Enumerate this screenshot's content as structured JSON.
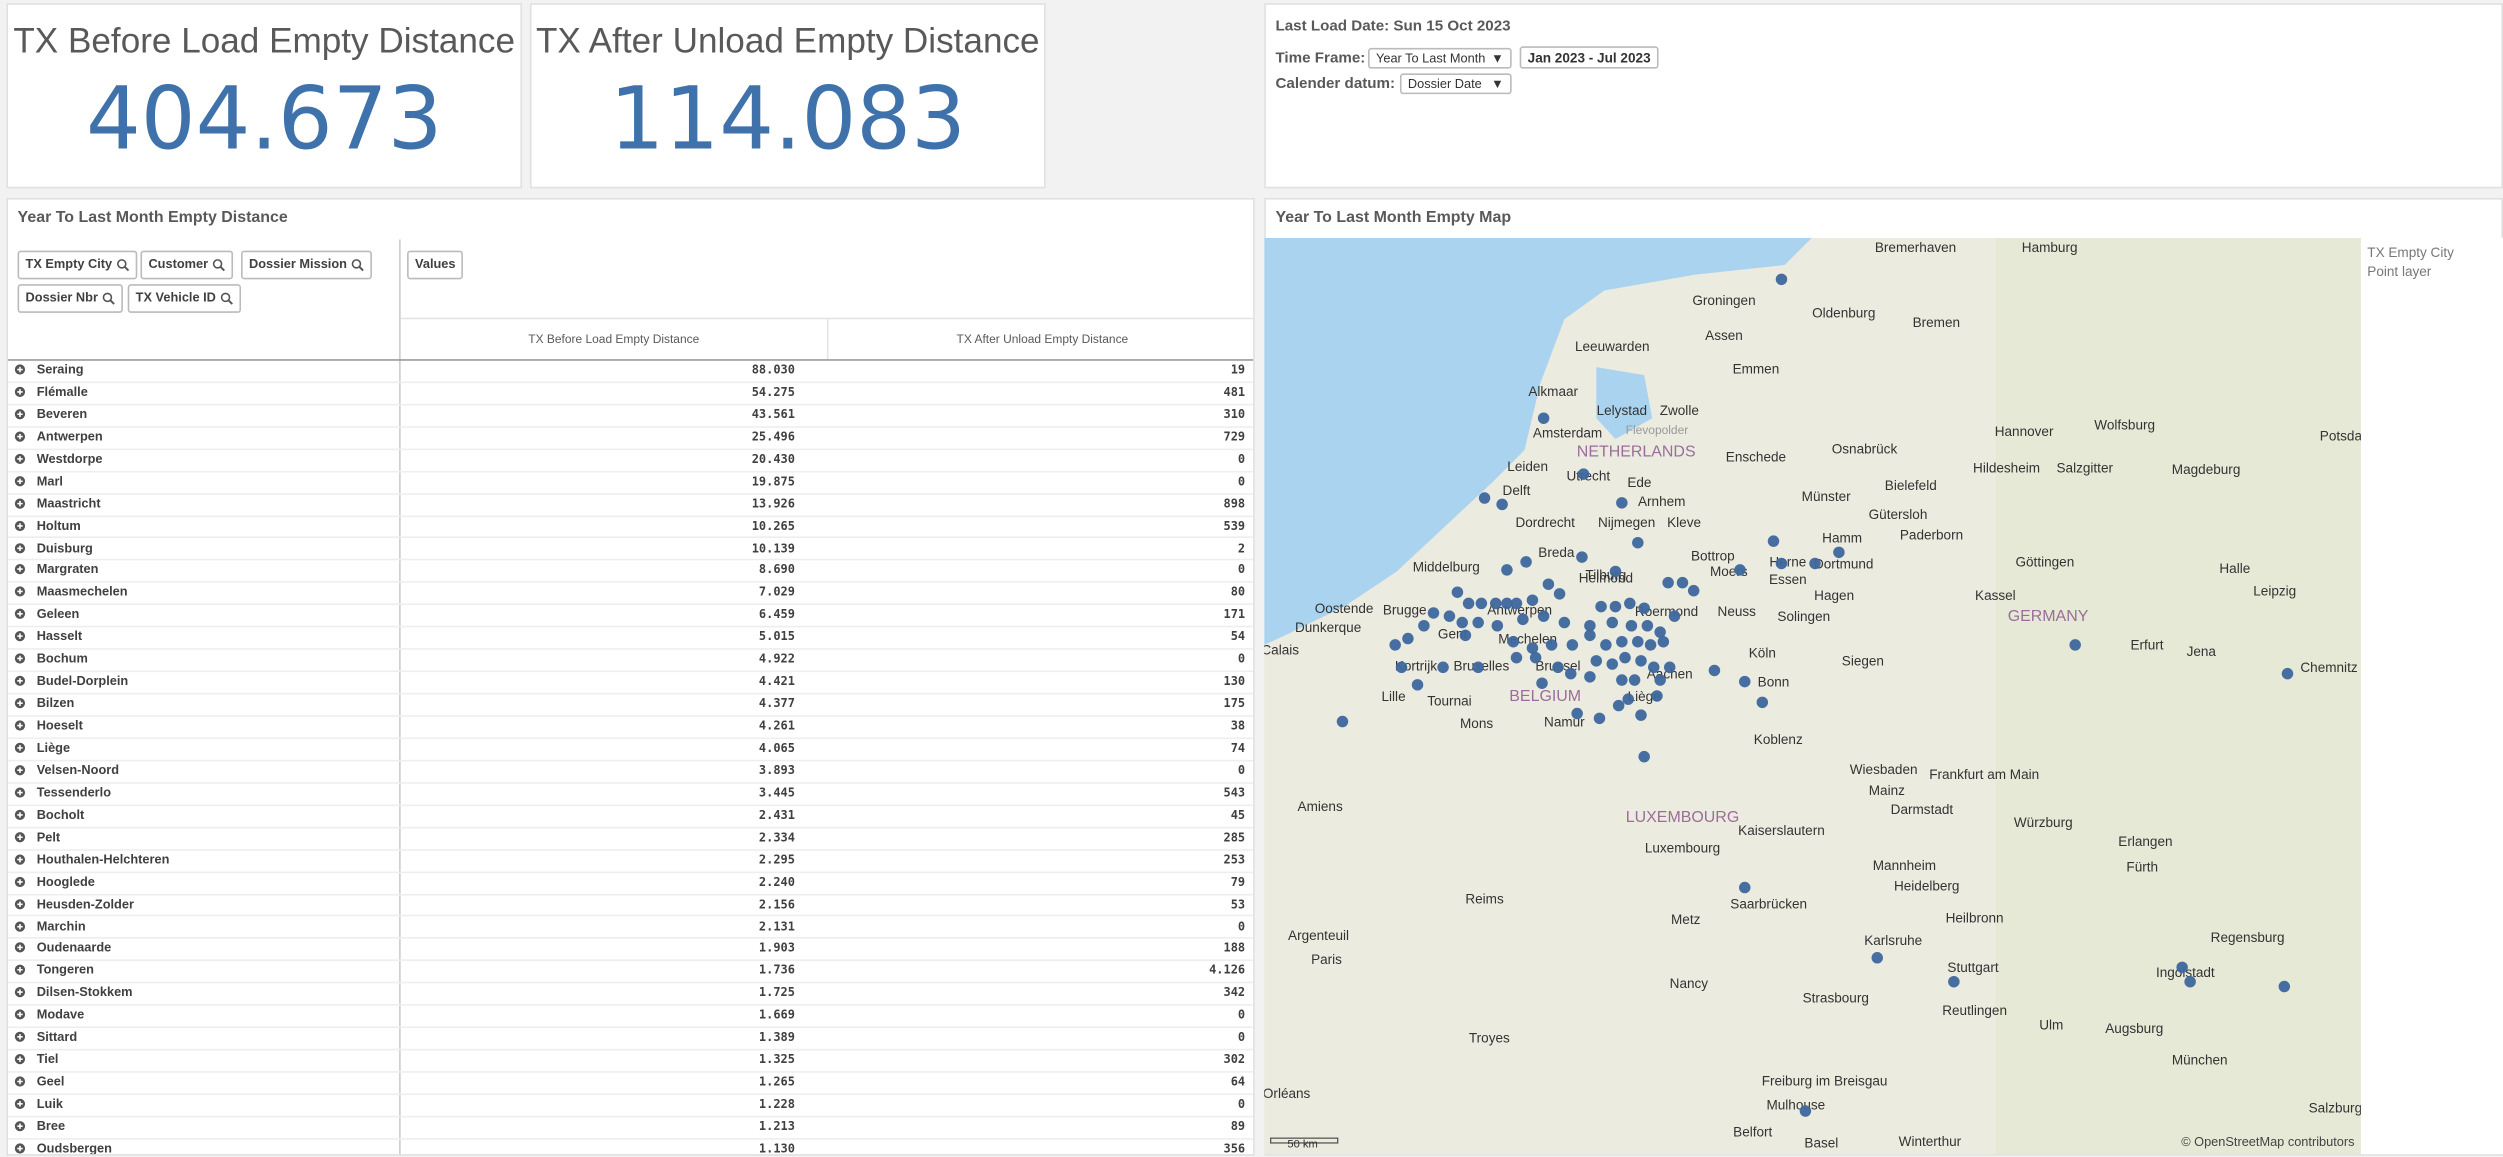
{
  "kpis": [
    {
      "label": "TX Before Load Empty Distance",
      "value": "404.673"
    },
    {
      "label": "TX After Unload Empty Distance",
      "value": "114.083"
    }
  ],
  "filters": {
    "last_load": "Last Load Date: Sun 15 Oct 2023",
    "time_frame_label": "Time Frame:",
    "time_frame": "Year To Last Month",
    "period": "Jan 2023 - Jul 2023",
    "calendar_label": "Calender datum:",
    "calendar": "Dossier Date"
  },
  "table": {
    "title": "Year To Last Month Empty Distance",
    "dimensions": [
      "TX Empty City",
      "Customer",
      "Dossier Mission",
      "Dossier Nbr",
      "TX Vehicle ID"
    ],
    "values_button": "Values",
    "columns": [
      "TX Before Load Empty Distance",
      "TX After Unload Empty Distance"
    ],
    "rows": [
      [
        "Seraing",
        "88.030",
        "19"
      ],
      [
        "Flémalle",
        "54.275",
        "481"
      ],
      [
        "Beveren",
        "43.561",
        "310"
      ],
      [
        "Antwerpen",
        "25.496",
        "729"
      ],
      [
        "Westdorpe",
        "20.430",
        "0"
      ],
      [
        "Marl",
        "19.875",
        "0"
      ],
      [
        "Maastricht",
        "13.926",
        "898"
      ],
      [
        "Holtum",
        "10.265",
        "539"
      ],
      [
        "Duisburg",
        "10.139",
        "2"
      ],
      [
        "Margraten",
        "8.690",
        "0"
      ],
      [
        "Maasmechelen",
        "7.029",
        "80"
      ],
      [
        "Geleen",
        "6.459",
        "171"
      ],
      [
        "Hasselt",
        "5.015",
        "54"
      ],
      [
        "Bochum",
        "4.922",
        "0"
      ],
      [
        "Budel-Dorplein",
        "4.421",
        "130"
      ],
      [
        "Bilzen",
        "4.377",
        "175"
      ],
      [
        "Hoeselt",
        "4.261",
        "38"
      ],
      [
        "Liège",
        "4.065",
        "74"
      ],
      [
        "Velsen-Noord",
        "3.893",
        "0"
      ],
      [
        "Tessenderlo",
        "3.445",
        "543"
      ],
      [
        "Bocholt",
        "2.431",
        "45"
      ],
      [
        "Pelt",
        "2.334",
        "285"
      ],
      [
        "Houthalen-Helchteren",
        "2.295",
        "253"
      ],
      [
        "Hooglede",
        "2.240",
        "79"
      ],
      [
        "Heusden-Zolder",
        "2.156",
        "53"
      ],
      [
        "Marchin",
        "2.131",
        "0"
      ],
      [
        "Oudenaarde",
        "1.903",
        "188"
      ],
      [
        "Tongeren",
        "1.736",
        "4.126"
      ],
      [
        "Dilsen-Stokkem",
        "1.725",
        "342"
      ],
      [
        "Modave",
        "1.669",
        "0"
      ],
      [
        "Sittard",
        "1.389",
        "0"
      ],
      [
        "Tiel",
        "1.325",
        "302"
      ],
      [
        "Geel",
        "1.265",
        "64"
      ],
      [
        "Luik",
        "1.228",
        "0"
      ],
      [
        "Bree",
        "1.213",
        "89"
      ],
      [
        "Oudsbergen",
        "1.130",
        "356"
      ]
    ]
  },
  "map": {
    "title": "Year To Last Month Empty Map",
    "legend_title": "TX Empty City",
    "legend_layer": "Point layer",
    "scale": "50 km",
    "attribution": "© OpenStreetMap contributors",
    "labels": [
      "Bremerhaven",
      "Hamburg",
      "Groningen",
      "Oldenburg",
      "Bremen",
      "Leeuwarden",
      "Assen",
      "Emmen",
      "Alkmaar",
      "Lelystad",
      "Zwolle",
      "Flevopolder",
      "Amsterdam",
      "NETHERLANDS",
      "Enschede",
      "Osnabrück",
      "Hannover",
      "Wolfsburg",
      "Potsdam",
      "Hildesheim",
      "Salzgitter",
      "Magdeburg",
      "Leiden",
      "Utrecht",
      "Delft",
      "Ede",
      "Bielefeld",
      "Münster",
      "Gütersloh",
      "Arnhem",
      "Dordrecht",
      "Nijmegen",
      "Kleve",
      "Paderborn",
      "Hamm",
      "Breda",
      "Bottrop",
      "Herne",
      "Dortmund",
      "Tilburg",
      "Middelburg",
      "Helmond",
      "Moers",
      "Essen",
      "Göttingen",
      "Halle",
      "Leipzig",
      "Hagen",
      "Kassel",
      "Oostende",
      "Brugge",
      "Antwerpen",
      "Roermond",
      "Neuss",
      "Solingen",
      "GERMANY",
      "Dunkerque",
      "Gent",
      "Mechelen",
      "Calais",
      "Erfurt",
      "Jena",
      "Köln",
      "Siegen",
      "Chemnitz",
      "Kortrijk",
      "Bruxelles",
      "Brussel",
      "Aachen",
      "Bonn",
      "BELGIUM",
      "Lille",
      "Tournai",
      "Mons",
      "Namur",
      "Liège",
      "Koblenz",
      "Wiesbaden",
      "Frankfurt am Main",
      "Mainz",
      "Amiens",
      "Darmstadt",
      "Würzburg",
      "LUXEMBOURG",
      "Luxembourg",
      "Kaiserslautern",
      "Erlangen",
      "Mannheim",
      "Fürth",
      "Heidelberg",
      "Saarbrücken",
      "Reims",
      "Metz",
      "Heilbronn",
      "Regensburg",
      "Argenteuil",
      "Karlsruhe",
      "Paris",
      "Stuttgart",
      "Ingolstadt",
      "Strasbourg",
      "Reutlingen",
      "Nancy",
      "Ulm",
      "Augsburg",
      "Troyes",
      "München",
      "Freiburg im Breisgau",
      "Orléans",
      "Mulhouse",
      "Basel",
      "Belfort",
      "Winterthur",
      "Salzburg"
    ]
  }
}
